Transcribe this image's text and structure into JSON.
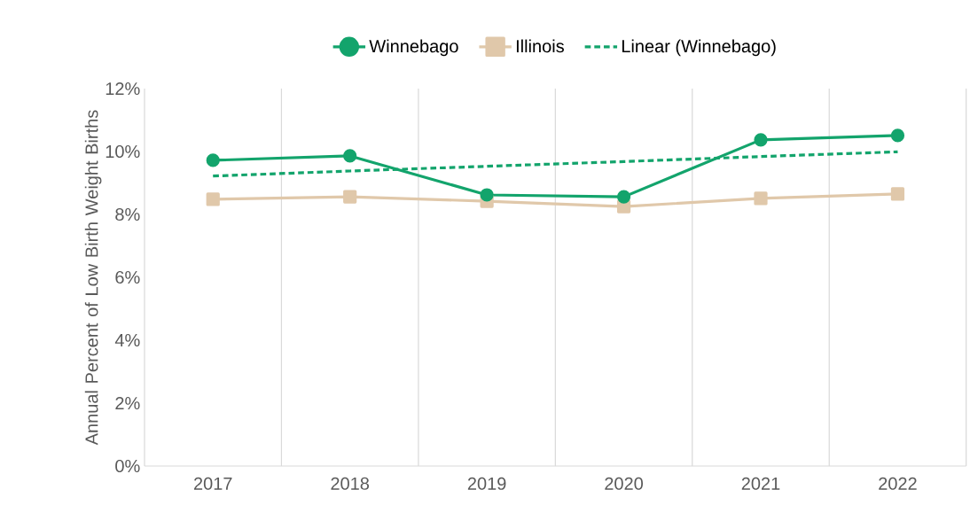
{
  "chart_data": {
    "type": "line",
    "ylabel": "Annual Percent of Low Birth Weight Births",
    "categories": [
      "2017",
      "2018",
      "2019",
      "2020",
      "2021",
      "2022"
    ],
    "series": [
      {
        "name": "Winnebago",
        "color": "#13a46c",
        "values": [
          9.72,
          9.86,
          8.62,
          8.56,
          10.37,
          10.51
        ],
        "marker": "circle",
        "line_style": "solid"
      },
      {
        "name": "Illinois",
        "color": "#e0c8aa",
        "values": [
          8.48,
          8.56,
          8.42,
          8.25,
          8.51,
          8.65
        ],
        "marker": "square",
        "line_style": "solid"
      },
      {
        "name": "Linear (Winnebago)",
        "color": "#13a46c",
        "values": [
          9.22,
          9.38,
          9.53,
          9.68,
          9.84,
          9.99
        ],
        "marker": "none",
        "line_style": "dashed"
      }
    ],
    "ylim": [
      0,
      12
    ],
    "yticks": [
      {
        "value": 0,
        "label": "0%"
      },
      {
        "value": 2,
        "label": "2%"
      },
      {
        "value": 4,
        "label": "4%"
      },
      {
        "value": 6,
        "label": "6%"
      },
      {
        "value": 8,
        "label": "8%"
      },
      {
        "value": 10,
        "label": "10%"
      },
      {
        "value": 12,
        "label": "12%"
      }
    ],
    "grid": "x",
    "legend": "top"
  }
}
